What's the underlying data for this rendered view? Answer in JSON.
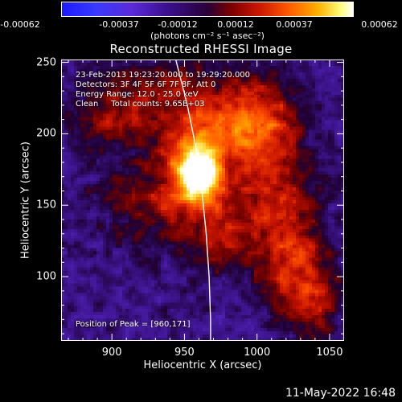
{
  "colorbar": {
    "ticks": [
      "-0.00062",
      "-0.00037",
      "-0.00012",
      "0.00012",
      "0.00037",
      "0.00062"
    ],
    "unit_label": "(photons cm⁻² s⁻¹ asec⁻²)"
  },
  "chart_data": {
    "type": "heatmap",
    "title": "Reconstructed RHESSI Image",
    "xlabel": "Heliocentric X (arcsec)",
    "ylabel": "Heliocentric Y (arcsec)",
    "xlim": [
      865,
      1060
    ],
    "ylim": [
      55,
      252
    ],
    "x_ticks": [
      "900",
      "950",
      "1000",
      "1050"
    ],
    "y_ticks": [
      "100",
      "150",
      "200",
      "250"
    ],
    "color_range": [
      -0.00062,
      0.00062
    ],
    "peak": [
      960,
      171
    ],
    "limb_curve": [
      [
        944,
        252
      ],
      [
        952,
        220
      ],
      [
        958,
        190
      ],
      [
        962,
        160
      ],
      [
        965,
        130
      ],
      [
        967,
        100
      ],
      [
        968,
        70
      ],
      [
        968,
        55
      ]
    ],
    "annotations": {
      "time": "23-Feb-2013 19:23:20.000 to 19:29:20.000",
      "detectors": "Detectors: 3F 4F 5F 6F 7F 8F, Att 0",
      "energy": "Energy Range: 12.0 - 25.0 keV",
      "clean": "Clean     Total counts: 9.65E+03",
      "peak_label": "Position of Peak = [960,171]"
    }
  },
  "footer": {
    "date": "11-May-2022 16:48"
  }
}
